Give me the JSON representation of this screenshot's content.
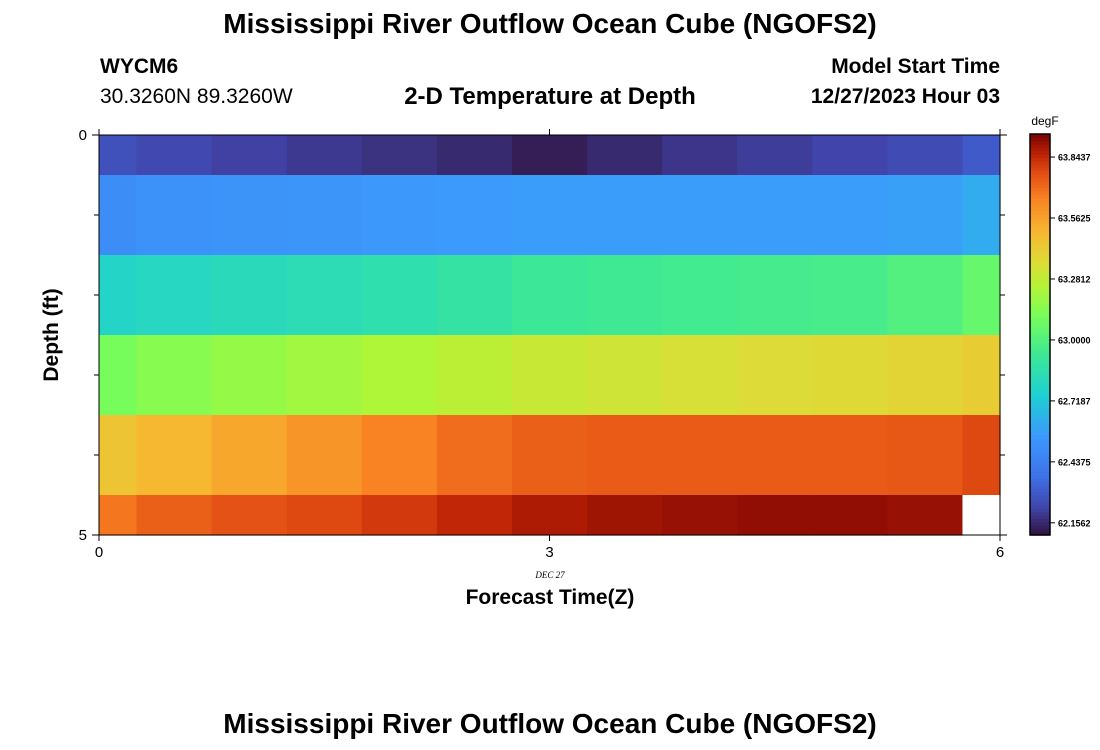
{
  "header": {
    "title": "Mississippi River Outflow Ocean Cube (NGOFS2)",
    "station_id": "WYCM6",
    "coordinates": "30.3260N  89.3260W",
    "subtitle": "2-D Temperature at Depth",
    "start_time_label": "Model Start Time",
    "start_time_value": "12/27/2023 Hour 03"
  },
  "footer": {
    "title": "Mississippi River Outflow Ocean Cube (NGOFS2)"
  },
  "chart_data": {
    "type": "heatmap",
    "title": "2-D Temperature at Depth",
    "xlabel": "Forecast Time(Z)",
    "ylabel": "Depth (ft)",
    "x_date_label": "DEC 27",
    "xlim": [
      0,
      6
    ],
    "ylim": [
      0,
      5
    ],
    "y_inverted": true,
    "x_ticks": [
      0,
      3,
      6
    ],
    "x_tick_labels": [
      "0",
      "3",
      "6"
    ],
    "y_ticks": [
      0,
      5
    ],
    "y_tick_labels": [
      "0",
      "5"
    ],
    "y_minor_ticks": [
      1,
      2,
      3,
      4
    ],
    "colorbar": {
      "unit": "degF",
      "min": 62.1,
      "max": 63.95,
      "ticks": [
        62.1562,
        62.4375,
        62.7187,
        63.0,
        63.2812,
        63.5625,
        63.8437
      ],
      "tick_labels": [
        "62.1562",
        "62.4375",
        "62.7187",
        "63.0000",
        "63.2812",
        "63.5625",
        "63.8437"
      ]
    },
    "time_columns": [
      0,
      0.5,
      1,
      1.5,
      2,
      2.5,
      3,
      3.5,
      4,
      4.5,
      5,
      5.5,
      6
    ],
    "depth_rows": [
      {
        "depth_range": [
          0,
          0.5
        ],
        "values": [
          62.27,
          62.24,
          62.22,
          62.2,
          62.18,
          62.16,
          62.13,
          62.16,
          62.19,
          62.21,
          62.23,
          62.25,
          62.3
        ]
      },
      {
        "depth_range": [
          0.5,
          1.5
        ],
        "values": [
          62.5,
          62.52,
          62.53,
          62.54,
          62.55,
          62.56,
          62.57,
          62.57,
          62.57,
          62.57,
          62.57,
          62.58,
          62.62
        ]
      },
      {
        "depth_range": [
          1.5,
          2.5
        ],
        "values": [
          62.78,
          62.8,
          62.82,
          62.84,
          62.86,
          62.89,
          62.93,
          62.94,
          62.95,
          62.96,
          62.97,
          63.0,
          63.06
        ]
      },
      {
        "depth_range": [
          2.5,
          3.5
        ],
        "values": [
          63.11,
          63.15,
          63.18,
          63.21,
          63.24,
          63.27,
          63.3,
          63.32,
          63.34,
          63.36,
          63.37,
          63.39,
          63.42
        ]
      },
      {
        "depth_range": [
          3.5,
          4.5
        ],
        "values": [
          63.45,
          63.5,
          63.55,
          63.6,
          63.65,
          63.7,
          63.73,
          63.74,
          63.74,
          63.74,
          63.74,
          63.75,
          63.78
        ]
      },
      {
        "depth_range": [
          4.5,
          5
        ],
        "values": [
          63.68,
          63.73,
          63.76,
          63.78,
          63.81,
          63.85,
          63.88,
          63.9,
          63.91,
          63.92,
          63.92,
          63.91,
          null
        ]
      }
    ]
  }
}
